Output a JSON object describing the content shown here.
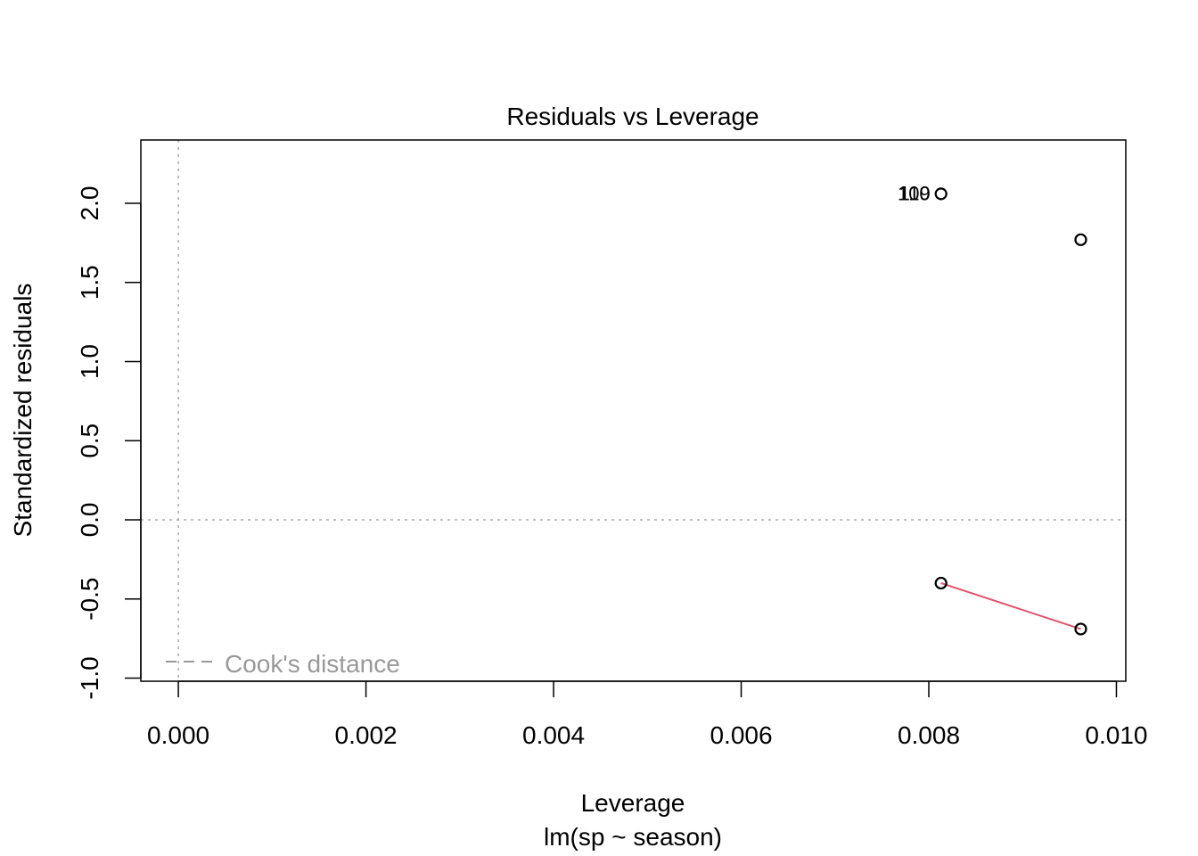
{
  "chart_data": {
    "type": "scatter",
    "title": "Residuals vs Leverage",
    "xlabel": "Leverage",
    "sublabel": "lm(sp ~ season)",
    "ylabel": "Standardized residuals",
    "xlim": [
      -0.0004,
      0.0101
    ],
    "ylim": [
      -1.02,
      2.4
    ],
    "x_ticks": [
      0,
      0.002,
      0.004,
      0.006,
      0.008,
      0.01
    ],
    "x_tick_labels": [
      "0.000",
      "0.002",
      "0.004",
      "0.006",
      "0.008",
      "0.010"
    ],
    "y_ticks": [
      -1.0,
      -0.5,
      0.0,
      0.5,
      1.0,
      1.5,
      2.0
    ],
    "y_tick_labels": [
      "-1.0",
      "-0.5",
      "0.0",
      "0.5",
      "1.0",
      "1.5",
      "2.0"
    ],
    "points": [
      {
        "x": 0.00813,
        "y": 2.06
      },
      {
        "x": 0.00962,
        "y": 1.77
      },
      {
        "x": 0.00813,
        "y": -0.4
      },
      {
        "x": 0.00962,
        "y": -0.69
      }
    ],
    "point_labels": [
      {
        "text": "109",
        "x": 0.00813,
        "y": 2.06
      },
      {
        "text": "110",
        "x": 0.00813,
        "y": 2.06
      }
    ],
    "smooth_line": {
      "color": "#DF536B",
      "x": [
        0.00813,
        0.00962
      ],
      "y": [
        -0.4,
        -0.69
      ]
    },
    "reference_lines": {
      "h": 0,
      "v": 0,
      "color": "#AAAAAA"
    },
    "legend": {
      "position": "bottom-left",
      "label": "Cook's distance",
      "color": "#999999"
    },
    "grid": false
  }
}
